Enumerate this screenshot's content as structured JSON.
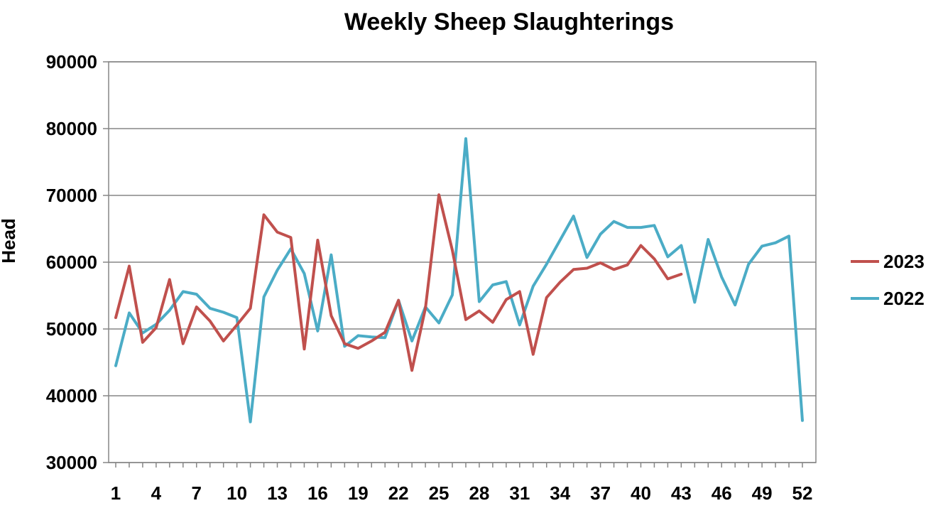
{
  "chart_data": {
    "type": "line",
    "title": "Weekly Sheep Slaughterings",
    "xlabel": "",
    "ylabel": "Head",
    "ylim": [
      30000,
      90000
    ],
    "yticks": [
      30000,
      40000,
      50000,
      60000,
      70000,
      80000,
      90000
    ],
    "xlim": [
      1,
      52
    ],
    "xticks": [
      1,
      4,
      7,
      10,
      13,
      16,
      19,
      22,
      25,
      28,
      31,
      34,
      37,
      40,
      43,
      46,
      49,
      52
    ],
    "grid": "horizontal",
    "legend_position": "right",
    "series": [
      {
        "name": "2023",
        "color": "#c0504d",
        "x": [
          1,
          2,
          3,
          4,
          5,
          6,
          7,
          8,
          9,
          10,
          11,
          12,
          13,
          14,
          15,
          16,
          17,
          18,
          19,
          20,
          21,
          22,
          23,
          24,
          25,
          26,
          27,
          28,
          29,
          30,
          31,
          32,
          33,
          34,
          35,
          36,
          37,
          38,
          39,
          40,
          41,
          42,
          43
        ],
        "values": [
          51700,
          59400,
          48000,
          50200,
          57400,
          47800,
          53300,
          51200,
          48200,
          50600,
          53100,
          67100,
          64500,
          63700,
          47000,
          63300,
          52000,
          47800,
          47100,
          48200,
          49500,
          54300,
          43800,
          53100,
          70100,
          61800,
          51400,
          52700,
          51000,
          54400,
          55600,
          46200,
          54700,
          57000,
          58900,
          59100,
          59900,
          58900,
          59600,
          62500,
          60500,
          57500,
          58200
        ]
      },
      {
        "name": "2022",
        "color": "#4bacc6",
        "x": [
          1,
          2,
          3,
          4,
          5,
          6,
          7,
          8,
          9,
          10,
          11,
          12,
          13,
          14,
          15,
          16,
          17,
          18,
          19,
          20,
          21,
          22,
          23,
          24,
          25,
          26,
          27,
          28,
          29,
          30,
          31,
          32,
          33,
          34,
          35,
          36,
          37,
          38,
          39,
          40,
          41,
          42,
          43,
          44,
          45,
          46,
          47,
          48,
          49,
          50,
          51,
          52
        ],
        "values": [
          44500,
          52400,
          49400,
          50700,
          52800,
          55600,
          55200,
          53100,
          52500,
          51700,
          36100,
          54800,
          58800,
          62000,
          58300,
          49700,
          61100,
          47400,
          49000,
          48800,
          48700,
          54300,
          48200,
          53300,
          50900,
          55100,
          78500,
          54100,
          56600,
          57100,
          50600,
          56400,
          59700,
          63300,
          66900,
          60700,
          64200,
          66100,
          65200,
          65200,
          65500,
          60800,
          62500,
          54000,
          63400,
          57800,
          53600,
          59700,
          62400,
          62900,
          63900,
          36300
        ]
      }
    ]
  }
}
